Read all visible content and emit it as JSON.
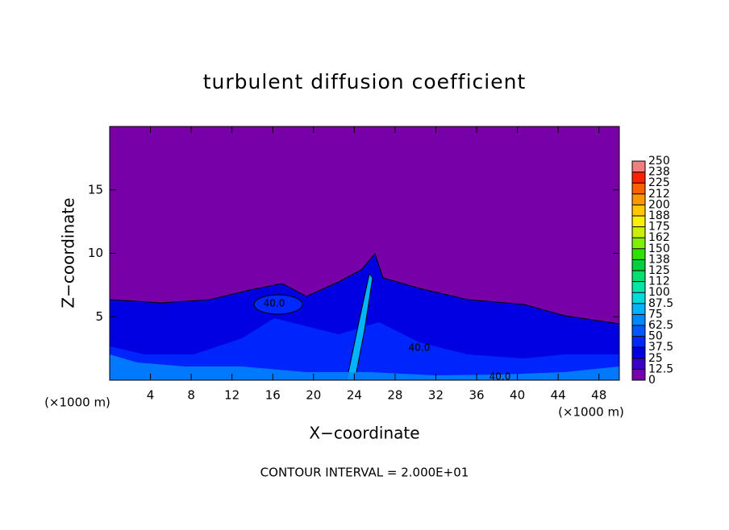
{
  "chart_data": {
    "type": "contour",
    "title": "turbulent diffusion coefficient",
    "x_label": "X−coordinate",
    "y_label": "Z−coordinate",
    "x_unit": "(×1000 m)",
    "y_unit": "(×1000 m)",
    "xlim": [
      0,
      50
    ],
    "ylim": [
      0,
      20
    ],
    "xticks": [
      4,
      8,
      12,
      16,
      20,
      24,
      28,
      32,
      36,
      40,
      44,
      48
    ],
    "yticks": [
      5,
      10,
      15
    ],
    "annotation": "CONTOUR INTERVAL = 2.000E+01",
    "contour_labels": [
      "40.0",
      "40.0",
      "40.0"
    ],
    "colorbar": {
      "ticks": [
        0,
        12.5,
        25,
        37.5,
        50,
        62.5,
        75,
        87.5,
        100,
        112,
        125,
        138,
        150,
        162,
        175,
        188,
        200,
        212,
        225,
        238,
        250
      ],
      "colors": [
        "#7800a8",
        "#3a00c8",
        "#0000e0",
        "#0028ff",
        "#0058ff",
        "#0088ff",
        "#00b4ff",
        "#00dcdc",
        "#00e8a8",
        "#00e070",
        "#00d040",
        "#30e000",
        "#80f000",
        "#c8f000",
        "#f8f000",
        "#ffc800",
        "#ff9800",
        "#ff6000",
        "#ff2000",
        "#f08080"
      ]
    }
  }
}
